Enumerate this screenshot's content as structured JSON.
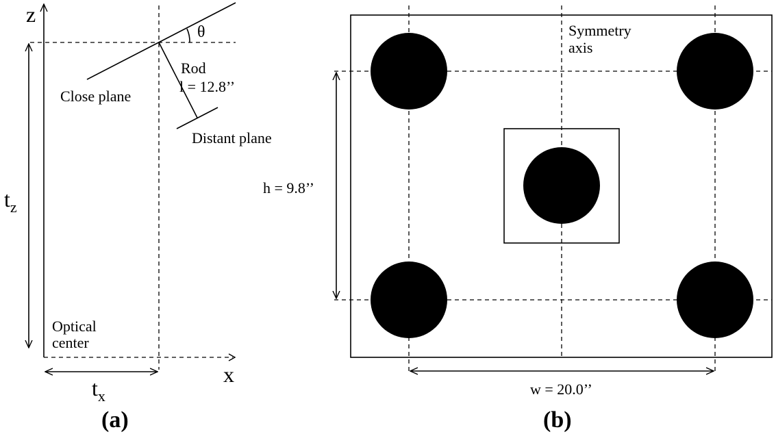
{
  "panel_a": {
    "caption": "(a)",
    "axis_z": "z",
    "axis_x": "x",
    "theta": "θ",
    "rod_label": "Rod",
    "rod_length": "l = 12.8’’",
    "close_plane": "Close plane",
    "distant_plane": "Distant plane",
    "tz_main": "t",
    "tz_sub": "z",
    "tx_main": "t",
    "tx_sub": "x",
    "optical_center_line1": "Optical",
    "optical_center_line2": "center"
  },
  "panel_b": {
    "caption": "(b)",
    "symmetry_line1": "Symmetry",
    "symmetry_line2": "axis",
    "height_label": "h = 9.8’’",
    "width_label": "w = 20.0’’"
  }
}
